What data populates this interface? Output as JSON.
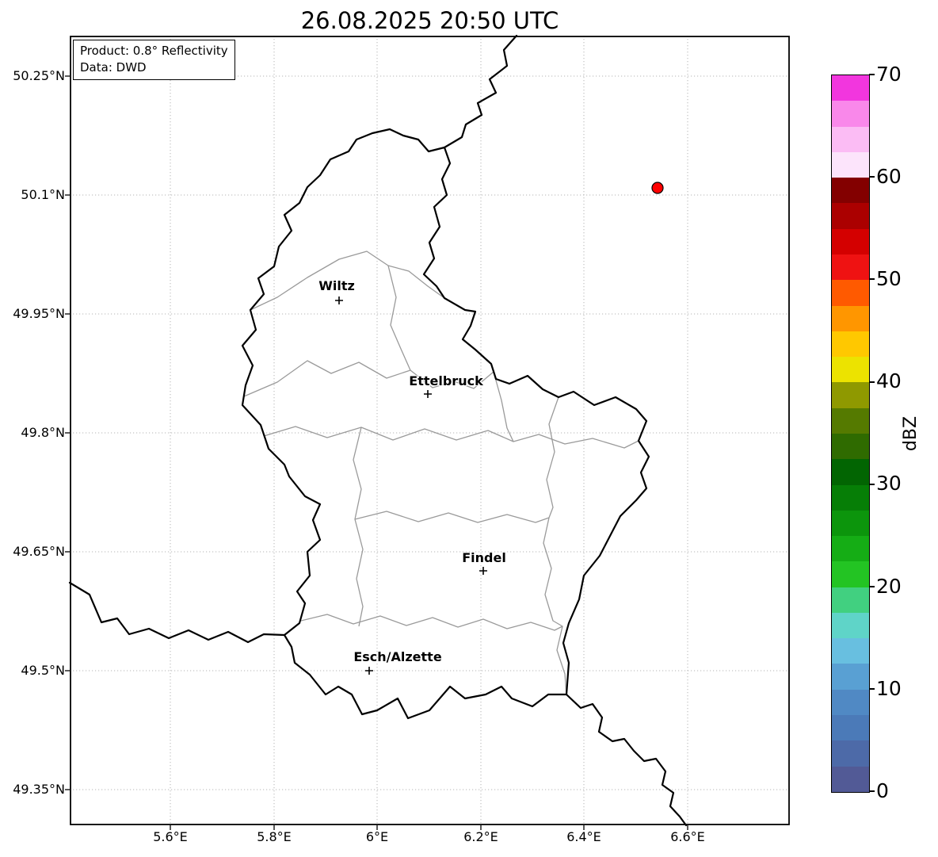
{
  "title": "26.08.2025 20:50 UTC",
  "info_box": {
    "product": "Product: 0.8° Reflectivity",
    "source": "Data: DWD"
  },
  "axes": {
    "x_tick_labels": [
      "5.6°E",
      "5.8°E",
      "6°E",
      "6.2°E",
      "6.4°E",
      "6.6°E"
    ],
    "y_tick_labels": [
      "50.25°N",
      "50.1°N",
      "49.95°N",
      "49.8°N",
      "49.65°N",
      "49.5°N",
      "49.35°N"
    ]
  },
  "cities": {
    "wiltz": "Wiltz",
    "ettelbruck": "Ettelbruck",
    "findel": "Findel",
    "esch": "Esch/Alzette"
  },
  "radar_marker": {
    "color": "#ff0000",
    "edge_color": "#000000",
    "approx_lon_deg_e": 6.54,
    "approx_lat_deg_n": 50.11
  },
  "map_style": {
    "country_border_color": "#000000",
    "district_border_color": "#9a9a9a",
    "grid_color": "#b5b5b5"
  },
  "colorbar": {
    "label": "dBZ",
    "range_min": 0,
    "range_max": 70,
    "tick_labels": [
      "70",
      "60",
      "50",
      "40",
      "30",
      "20",
      "10",
      "0"
    ],
    "segment_colors_bottom_to_top": [
      "#525a96",
      "#4d6aa8",
      "#4b7ab8",
      "#5089c4",
      "#59a0d3",
      "#68bfe0",
      "#5fd4c8",
      "#41d080",
      "#23c423",
      "#15ad15",
      "#0c950c",
      "#067e06",
      "#026502",
      "#2f6b00",
      "#557a00",
      "#8f9900",
      "#ece300",
      "#ffc800",
      "#ff9600",
      "#ff5a00",
      "#ef1212",
      "#d40000",
      "#ab0000",
      "#830000",
      "#fce4fb",
      "#fbbcf4",
      "#f988ea",
      "#f236de"
    ]
  }
}
